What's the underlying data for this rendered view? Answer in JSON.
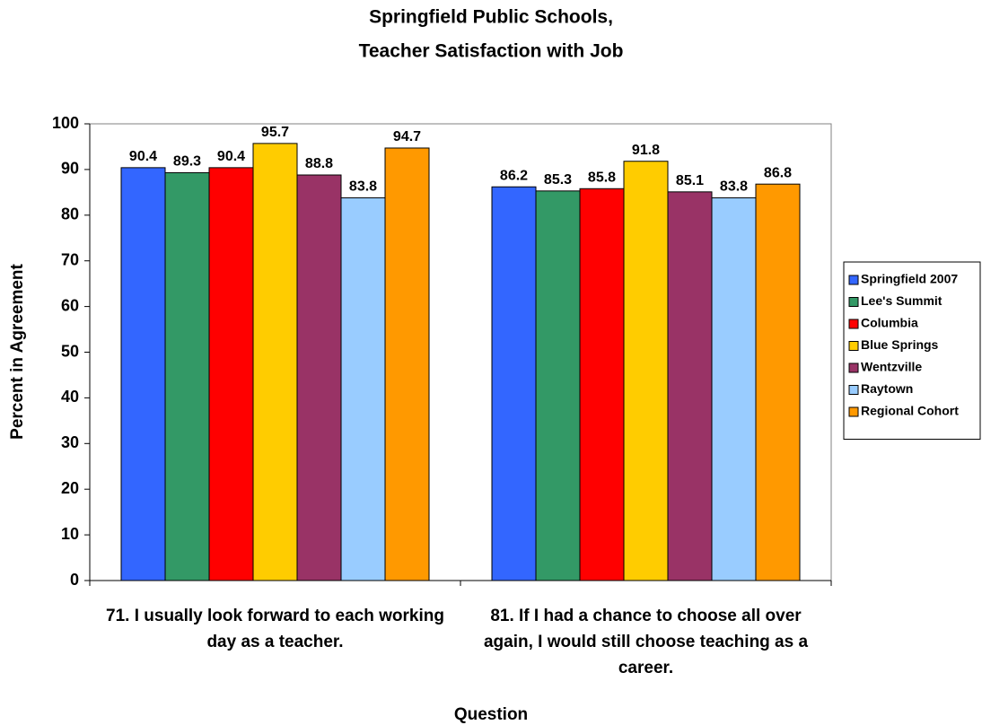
{
  "chart_data": {
    "type": "bar",
    "title": [
      "Springfield Public Schools,",
      "Teacher Satisfaction with Job"
    ],
    "x_label": "Question",
    "y_label": "Percent in Agreement",
    "categories": [
      "71. I usually look forward to each working day as a teacher.",
      "81. If I had a chance to choose all over again, I would still choose teaching as a career."
    ],
    "series": [
      {
        "name": "Springfield 2007",
        "color": "#3366ff",
        "values": [
          90.4,
          86.2
        ]
      },
      {
        "name": "Lee's Summit",
        "color": "#339966",
        "values": [
          89.3,
          85.3
        ]
      },
      {
        "name": "Columbia",
        "color": "#ff0000",
        "values": [
          90.4,
          85.8
        ]
      },
      {
        "name": "Blue Springs",
        "color": "#ffcc00",
        "values": [
          95.7,
          91.8
        ]
      },
      {
        "name": "Wentzville",
        "color": "#993366",
        "values": [
          88.8,
          85.1
        ]
      },
      {
        "name": "Raytown",
        "color": "#99ccff",
        "values": [
          83.8,
          83.8
        ]
      },
      {
        "name": "Regional Cohort",
        "color": "#ff9900",
        "values": [
          94.7,
          86.8
        ]
      }
    ],
    "ylim": [
      0,
      100
    ],
    "yticks": [
      0,
      10,
      20,
      30,
      40,
      50,
      60,
      70,
      80,
      90,
      100
    ],
    "grid": false,
    "legend": "right"
  }
}
